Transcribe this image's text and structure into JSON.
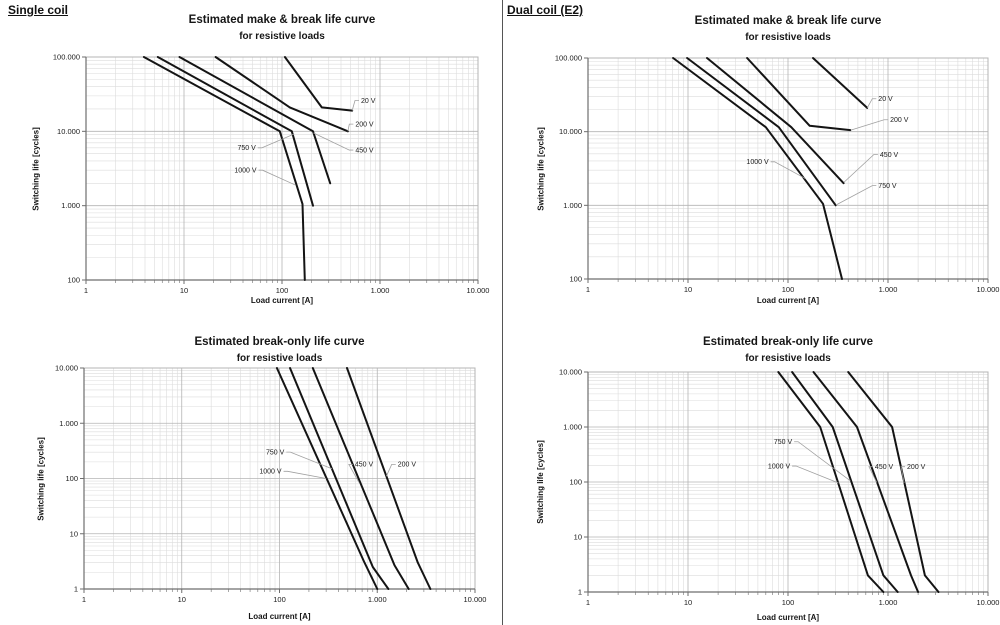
{
  "page": {
    "left_header": "Single coil",
    "right_header": "Dual coil (E2)"
  },
  "colors": {
    "curve": "#141414",
    "grid_minor": "#dcdcdc",
    "grid_major": "#b4b4b4",
    "border": "#b4b4b4",
    "axis": "#6e6e6e",
    "leader": "#a0a0a0",
    "text": "#1a1a1a",
    "divider": "#555555"
  },
  "chart_data": [
    {
      "id": "mb-single",
      "type": "line",
      "title": "Estimated make & break life curve",
      "subtitle": "for resistive loads",
      "xlabel": "Load current [A]",
      "ylabel": "Switching life [cycles]",
      "xlim": [
        1,
        10000
      ],
      "ylim": [
        100,
        100000
      ],
      "grid": "log-log with minor lines",
      "legend_position": "inline curve labels",
      "x_ticks": [
        {
          "v": 1,
          "label": "1"
        },
        {
          "v": 10,
          "label": "10"
        },
        {
          "v": 100,
          "label": "100"
        },
        {
          "v": 1000,
          "label": "1.000"
        },
        {
          "v": 10000,
          "label": "10.000"
        }
      ],
      "y_ticks": [
        {
          "v": 100,
          "label": "100"
        },
        {
          "v": 1000,
          "label": "1.000"
        },
        {
          "v": 10000,
          "label": "10.000"
        },
        {
          "v": 100000,
          "label": "100.000"
        }
      ],
      "series": [
        {
          "name": "20 V",
          "points": [
            [
              107,
              100000
            ],
            [
              255,
              21000
            ],
            [
              520,
              19000
            ]
          ],
          "label": {
            "text": "20 V",
            "x": 640,
            "y": 26000,
            "anchor": "start",
            "attach": [
              520,
              19000
            ]
          }
        },
        {
          "name": "200 V",
          "points": [
            [
              21,
              100000
            ],
            [
              120,
              21000
            ],
            [
              470,
              10000
            ]
          ],
          "label": {
            "text": "200 V",
            "x": 560,
            "y": 12500,
            "anchor": "start",
            "attach": [
              470,
              10000
            ]
          }
        },
        {
          "name": "450 V",
          "points": [
            [
              9,
              100000
            ],
            [
              207,
              10000
            ],
            [
              310,
              2000
            ]
          ],
          "label": {
            "text": "450 V",
            "x": 560,
            "y": 5600,
            "anchor": "start",
            "attach": [
              210,
              9500
            ]
          }
        },
        {
          "name": "750 V",
          "points": [
            [
              5.4,
              100000
            ],
            [
              126,
              10000
            ],
            [
              207,
              1000
            ]
          ],
          "label": {
            "text": "750 V",
            "x": 54,
            "y": 6000,
            "anchor": "end",
            "attach": [
              133,
              9200
            ]
          }
        },
        {
          "name": "1000 V",
          "points": [
            [
              3.9,
              100000
            ],
            [
              95,
              10000
            ],
            [
              162,
              1050
            ],
            [
              171,
              100
            ]
          ],
          "label": {
            "text": "1000 V",
            "x": 55,
            "y": 3000,
            "anchor": "end",
            "attach": [
              136,
              1900
            ]
          }
        }
      ]
    },
    {
      "id": "mb-dual",
      "type": "line",
      "title": "Estimated make & break life curve",
      "subtitle": "for resistive loads",
      "xlabel": "Load current [A]",
      "ylabel": "Switching life [cycles]",
      "xlim": [
        1,
        10000
      ],
      "ylim": [
        100,
        100000
      ],
      "grid": "log-log with minor lines",
      "legend_position": "inline curve labels",
      "x_ticks": [
        {
          "v": 1,
          "label": "1"
        },
        {
          "v": 10,
          "label": "10"
        },
        {
          "v": 100,
          "label": "100"
        },
        {
          "v": 1000,
          "label": "1.000"
        },
        {
          "v": 10000,
          "label": "10.000"
        }
      ],
      "y_ticks": [
        {
          "v": 100,
          "label": "100"
        },
        {
          "v": 1000,
          "label": "1.000"
        },
        {
          "v": 10000,
          "label": "10.000"
        },
        {
          "v": 100000,
          "label": "100.000"
        }
      ],
      "series": [
        {
          "name": "20 V",
          "points": [
            [
              178,
              100000
            ],
            [
              620,
              21000
            ]
          ],
          "label": {
            "text": "20 V",
            "x": 800,
            "y": 28000,
            "anchor": "start",
            "attach": [
              620,
              21000
            ]
          }
        },
        {
          "name": "200 V",
          "points": [
            [
              39,
              100000
            ],
            [
              165,
              12000
            ],
            [
              420,
              10500
            ]
          ],
          "label": {
            "text": "200 V",
            "x": 1050,
            "y": 14500,
            "anchor": "start",
            "attach": [
              425,
              10500
            ]
          }
        },
        {
          "name": "450 V",
          "points": [
            [
              15.5,
              100000
            ],
            [
              108,
              11500
            ],
            [
              360,
              2000
            ]
          ],
          "label": {
            "text": "450 V",
            "x": 830,
            "y": 4900,
            "anchor": "start",
            "attach": [
              362,
              2050
            ]
          }
        },
        {
          "name": "750 V",
          "points": [
            [
              9.8,
              100000
            ],
            [
              81,
              11500
            ],
            [
              300,
              1000
            ]
          ],
          "label": {
            "text": "750 V",
            "x": 800,
            "y": 1850,
            "anchor": "start",
            "attach": [
              302,
              1010
            ]
          }
        },
        {
          "name": "1000 V",
          "points": [
            [
              7.1,
              100000
            ],
            [
              60,
              11500
            ],
            [
              224,
              1050
            ],
            [
              347,
              100
            ]
          ],
          "label": {
            "text": "1000 V",
            "x": 64,
            "y": 3900,
            "anchor": "end",
            "attach": [
              150,
              2300
            ]
          }
        }
      ]
    },
    {
      "id": "bo-single",
      "type": "line",
      "title": "Estimated break-only life curve",
      "subtitle": "for resistive loads",
      "xlabel": "Load current [A]",
      "ylabel": "Switching life [cycles]",
      "xlim": [
        1,
        10000
      ],
      "ylim": [
        1,
        10000
      ],
      "grid": "log-log with minor lines",
      "legend_position": "inline curve labels",
      "x_ticks": [
        {
          "v": 1,
          "label": "1"
        },
        {
          "v": 10,
          "label": "10"
        },
        {
          "v": 100,
          "label": "100"
        },
        {
          "v": 1000,
          "label": "1.000"
        },
        {
          "v": 10000,
          "label": "10.000"
        }
      ],
      "y_ticks": [
        {
          "v": 1,
          "label": "1"
        },
        {
          "v": 10,
          "label": "10"
        },
        {
          "v": 100,
          "label": "100"
        },
        {
          "v": 1000,
          "label": "1.000"
        },
        {
          "v": 10000,
          "label": "10.000"
        }
      ],
      "series": [
        {
          "name": "750 V",
          "points": [
            [
              128,
              10000
            ],
            [
              900,
              2.5
            ],
            [
              1300,
              1
            ]
          ],
          "label": {
            "text": "750 V",
            "x": 112,
            "y": 300,
            "anchor": "end",
            "attach": [
              344,
              150
            ]
          }
        },
        {
          "name": "1000 V",
          "points": [
            [
              94,
              10000
            ],
            [
              740,
              3
            ],
            [
              1000,
              1
            ]
          ],
          "label": {
            "text": "1000 V",
            "x": 105,
            "y": 135,
            "anchor": "end",
            "attach": [
              300,
              100
            ]
          }
        },
        {
          "name": "450 V",
          "points": [
            [
              219,
              10000
            ],
            [
              1500,
              2.7
            ],
            [
              2100,
              1
            ]
          ],
          "label": {
            "text": "450 V",
            "x": 590,
            "y": 180,
            "anchor": "start",
            "attach": [
              650,
              85
            ]
          }
        },
        {
          "name": "200 V",
          "points": [
            [
              490,
              10000
            ],
            [
              2600,
              3
            ],
            [
              3500,
              1
            ]
          ],
          "label": {
            "text": "200 V",
            "x": 1620,
            "y": 180,
            "anchor": "start",
            "attach": [
              1240,
              110
            ]
          }
        }
      ]
    },
    {
      "id": "bo-dual",
      "type": "line",
      "title": "Estimated break-only life curve",
      "subtitle": "for resistive loads",
      "xlabel": "Load current [A]",
      "ylabel": "Switching life [cycles]",
      "xlim": [
        1,
        10000
      ],
      "ylim": [
        1,
        10000
      ],
      "grid": "log-log with minor lines",
      "legend_position": "inline curve labels",
      "x_ticks": [
        {
          "v": 1,
          "label": "1"
        },
        {
          "v": 10,
          "label": "10"
        },
        {
          "v": 100,
          "label": "100"
        },
        {
          "v": 1000,
          "label": "1.000"
        },
        {
          "v": 10000,
          "label": "10.000"
        }
      ],
      "y_ticks": [
        {
          "v": 1,
          "label": "1"
        },
        {
          "v": 10,
          "label": "10"
        },
        {
          "v": 100,
          "label": "100"
        },
        {
          "v": 1000,
          "label": "1.000"
        },
        {
          "v": 10000,
          "label": "10.000"
        }
      ],
      "series": [
        {
          "name": "750 V",
          "points": [
            [
              110,
              10000
            ],
            [
              280,
              1000
            ],
            [
              900,
              2
            ],
            [
              1250,
              1
            ]
          ],
          "label": {
            "text": "750 V",
            "x": 110,
            "y": 540,
            "anchor": "end",
            "attach": [
              420,
              105
            ]
          }
        },
        {
          "name": "1000 V",
          "points": [
            [
              80,
              10000
            ],
            [
              210,
              1000
            ],
            [
              630,
              2
            ],
            [
              900,
              1
            ]
          ],
          "label": {
            "text": "1000 V",
            "x": 105,
            "y": 195,
            "anchor": "end",
            "attach": [
              320,
              96
            ]
          }
        },
        {
          "name": "450 V",
          "points": [
            [
              180,
              10000
            ],
            [
              490,
              1000
            ],
            [
              1700,
              2
            ],
            [
              2000,
              1
            ]
          ],
          "label": {
            "text": "450 V",
            "x": 740,
            "y": 190,
            "anchor": "start",
            "attach": [
              770,
              98
            ]
          }
        },
        {
          "name": "200 V",
          "points": [
            [
              400,
              10000
            ],
            [
              1100,
              1000
            ],
            [
              2340,
              2
            ],
            [
              3200,
              1
            ]
          ],
          "label": {
            "text": "200 V",
            "x": 1550,
            "y": 190,
            "anchor": "start",
            "attach": [
              1450,
              96
            ]
          }
        }
      ]
    }
  ]
}
